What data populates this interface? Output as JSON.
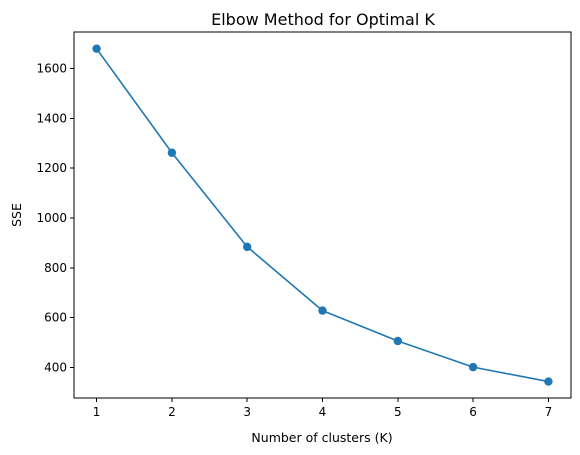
{
  "chart_data": {
    "type": "line",
    "title": "Elbow Method for Optimal K",
    "xlabel": "Number of clusters (K)",
    "ylabel": "SSE",
    "x": [
      1,
      2,
      3,
      4,
      5,
      6,
      7
    ],
    "series": [
      {
        "values": [
          1680,
          1262,
          884,
          628,
          506,
          401,
          343
        ],
        "color": "#1f77b4",
        "marker": "circle"
      }
    ],
    "xlim": [
      0.7,
      7.3
    ],
    "ylim": [
      277,
      1747
    ],
    "xticks": [
      1,
      2,
      3,
      4,
      5,
      6,
      7
    ],
    "yticks": [
      400,
      600,
      800,
      1000,
      1200,
      1400,
      1600
    ],
    "grid": false
  }
}
